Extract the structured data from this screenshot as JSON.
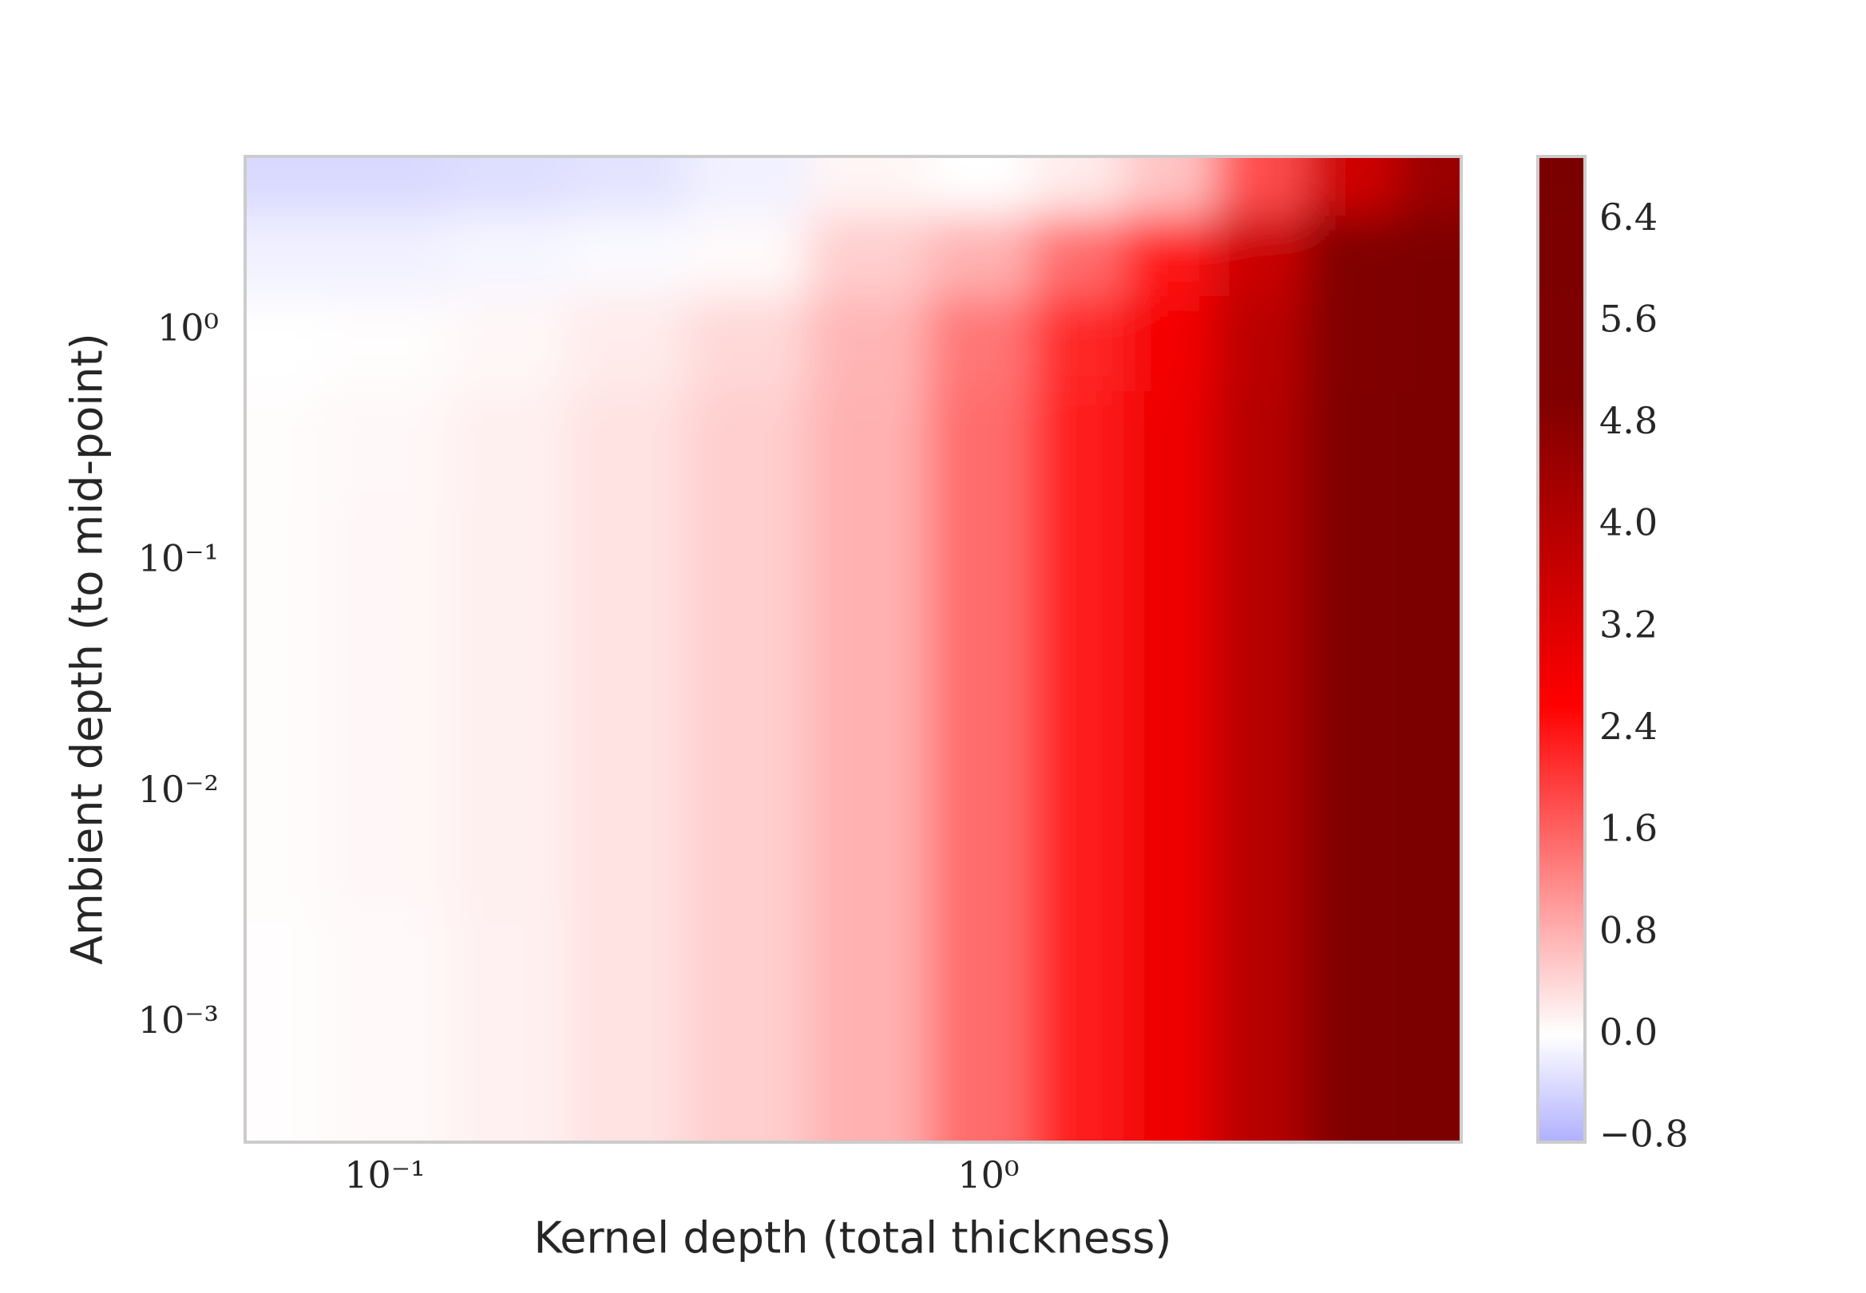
{
  "chart_data": {
    "type": "contourf",
    "xlabel": "Kernel depth (total thickness)",
    "ylabel": "Ambient depth (to mid-point)",
    "xscale": "log",
    "yscale": "log",
    "xlim": [
      0.0587,
      6.07
    ],
    "ylim": [
      0.000305,
      5.7
    ],
    "xticks": [
      {
        "value": 0.1,
        "label": "10⁻¹"
      },
      {
        "value": 1,
        "label": "10⁰"
      }
    ],
    "yticks": [
      {
        "value": 0.001,
        "label": "10⁻³"
      },
      {
        "value": 0.01,
        "label": "10⁻²"
      },
      {
        "value": 0.1,
        "label": "10⁻¹"
      },
      {
        "value": 1,
        "label": "10⁰"
      }
    ],
    "x": [
      0.063,
      0.1,
      0.16,
      0.25,
      0.4,
      0.63,
      1,
      1.4,
      2,
      2.8,
      4,
      5.6
    ],
    "y": [
      5,
      2,
      1,
      0.3,
      0.1,
      0.01,
      0.001,
      0.0004
    ],
    "z": [
      [
        -0.4,
        -0.4,
        -0.35,
        -0.3,
        -0.15,
        0.1,
        0.0,
        0.2,
        0.6,
        1.8,
        3.5,
        4.5
      ],
      [
        -0.15,
        -0.15,
        -0.1,
        -0.05,
        0.05,
        0.5,
        0.8,
        1.5,
        2.4,
        3.6,
        5.0,
        6.0
      ],
      [
        0.0,
        0.02,
        0.08,
        0.2,
        0.4,
        0.75,
        1.4,
        2.2,
        2.8,
        3.9,
        5.1,
        6.1
      ],
      [
        0.03,
        0.07,
        0.15,
        0.3,
        0.5,
        0.8,
        1.5,
        2.3,
        2.9,
        4.0,
        5.2,
        6.2
      ],
      [
        0.03,
        0.08,
        0.15,
        0.3,
        0.5,
        0.8,
        1.5,
        2.3,
        2.9,
        4.0,
        5.2,
        6.2
      ],
      [
        0.03,
        0.08,
        0.15,
        0.3,
        0.5,
        0.8,
        1.5,
        2.3,
        2.9,
        4.0,
        5.2,
        6.2
      ],
      [
        0.02,
        0.06,
        0.14,
        0.3,
        0.5,
        0.8,
        1.5,
        2.3,
        2.9,
        4.0,
        5.2,
        6.2
      ],
      [
        0.02,
        0.06,
        0.14,
        0.3,
        0.5,
        0.8,
        1.5,
        2.3,
        2.9,
        4.0,
        5.2,
        6.2
      ]
    ],
    "colorbar": {
      "clim": [
        -0.84,
        6.9
      ],
      "ticks": [
        {
          "value": -0.8,
          "label": "−0.8"
        },
        {
          "value": 0,
          "label": "0.0"
        },
        0.8,
        1.6,
        2.4,
        3.2,
        {
          "value": 4,
          "label": "4.0"
        },
        4.8,
        5.6,
        6.4
      ],
      "colormap": [
        {
          "value": -0.84,
          "color": "#b0b0ff"
        },
        {
          "value": 0,
          "color": "#ffffff"
        },
        {
          "value": 2.6,
          "color": "#ff0000"
        },
        {
          "value": 5.0,
          "color": "#800000"
        },
        {
          "value": 6.9,
          "color": "#7a0000"
        }
      ]
    }
  }
}
